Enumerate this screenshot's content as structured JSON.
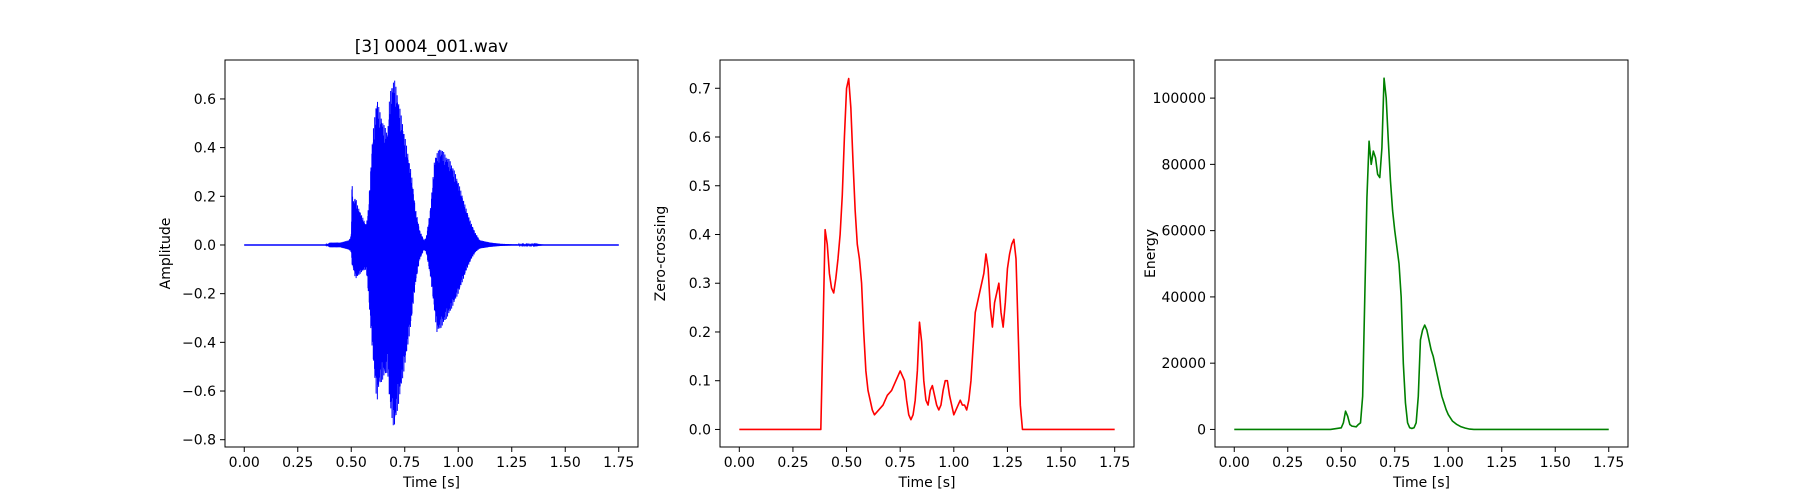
{
  "chart_data": [
    {
      "type": "line",
      "title": "[3] 0004_001.wav",
      "xlabel": "Time [s]",
      "ylabel": "Amplitude",
      "xlim": [
        -0.09,
        1.84
      ],
      "ylim": [
        -0.83,
        0.76
      ],
      "xticks": [
        0.0,
        0.25,
        0.5,
        0.75,
        1.0,
        1.25,
        1.5,
        1.75
      ],
      "xtick_labels": [
        "0.00",
        "0.25",
        "0.50",
        "0.75",
        "1.00",
        "1.25",
        "1.50",
        "1.75"
      ],
      "yticks": [
        -0.8,
        -0.6,
        -0.4,
        -0.2,
        0.0,
        0.2,
        0.4,
        0.6
      ],
      "ytick_labels": [
        "−0.8",
        "−0.6",
        "−0.4",
        "−0.2",
        "0.0",
        "0.2",
        "0.4",
        "0.6"
      ],
      "color": "#0000ff",
      "grid": false,
      "series": [
        {
          "style": "waveform",
          "envelope_x": [
            0.0,
            0.38,
            0.4,
            0.45,
            0.49,
            0.5,
            0.503,
            0.51,
            0.52,
            0.53,
            0.55,
            0.57,
            0.58,
            0.6,
            0.62,
            0.63,
            0.65,
            0.67,
            0.68,
            0.7,
            0.72,
            0.74,
            0.75,
            0.78,
            0.8,
            0.82,
            0.84,
            0.85,
            0.87,
            0.89,
            0.9,
            0.92,
            0.94,
            0.96,
            0.98,
            1.0,
            1.02,
            1.04,
            1.06,
            1.08,
            1.1,
            1.15,
            1.2,
            1.25,
            1.3,
            1.35,
            1.4,
            1.75
          ],
          "envelope_upper": [
            0.0,
            0.0,
            0.01,
            0.01,
            0.02,
            0.04,
            0.26,
            0.18,
            0.2,
            0.16,
            0.12,
            0.08,
            0.15,
            0.45,
            0.61,
            0.56,
            0.5,
            0.46,
            0.62,
            0.69,
            0.6,
            0.5,
            0.45,
            0.3,
            0.15,
            0.06,
            0.02,
            0.03,
            0.15,
            0.36,
            0.38,
            0.4,
            0.37,
            0.35,
            0.31,
            0.26,
            0.2,
            0.14,
            0.09,
            0.05,
            0.02,
            0.01,
            0.005,
            0.003,
            0.002,
            0.002,
            0.0,
            0.0
          ],
          "envelope_lower": [
            0.0,
            0.0,
            -0.01,
            -0.01,
            -0.02,
            -0.03,
            -0.08,
            -0.1,
            -0.14,
            -0.13,
            -0.11,
            -0.1,
            -0.2,
            -0.45,
            -0.65,
            -0.58,
            -0.55,
            -0.52,
            -0.66,
            -0.76,
            -0.66,
            -0.55,
            -0.5,
            -0.32,
            -0.16,
            -0.06,
            -0.02,
            -0.03,
            -0.13,
            -0.28,
            -0.36,
            -0.34,
            -0.31,
            -0.28,
            -0.24,
            -0.2,
            -0.15,
            -0.1,
            -0.06,
            -0.03,
            -0.015,
            -0.008,
            -0.004,
            -0.002,
            -0.001,
            -0.001,
            0.0,
            0.0
          ]
        }
      ]
    },
    {
      "type": "line",
      "title": "",
      "xlabel": "Time [s]",
      "ylabel": "Zero-crossing",
      "xlim": [
        -0.09,
        1.84
      ],
      "ylim": [
        -0.036,
        0.758
      ],
      "xticks": [
        0.0,
        0.25,
        0.5,
        0.75,
        1.0,
        1.25,
        1.5,
        1.75
      ],
      "xtick_labels": [
        "0.00",
        "0.25",
        "0.50",
        "0.75",
        "1.00",
        "1.25",
        "1.50",
        "1.75"
      ],
      "yticks": [
        0.0,
        0.1,
        0.2,
        0.3,
        0.4,
        0.5,
        0.6,
        0.7
      ],
      "ytick_labels": [
        "0.0",
        "0.1",
        "0.2",
        "0.3",
        "0.4",
        "0.5",
        "0.6",
        "0.7"
      ],
      "color": "#ff0000",
      "grid": false,
      "series": [
        {
          "x": [
            0.0,
            0.38,
            0.39,
            0.4,
            0.41,
            0.42,
            0.43,
            0.44,
            0.45,
            0.46,
            0.47,
            0.48,
            0.49,
            0.5,
            0.51,
            0.52,
            0.53,
            0.54,
            0.55,
            0.56,
            0.57,
            0.58,
            0.59,
            0.6,
            0.61,
            0.62,
            0.63,
            0.65,
            0.67,
            0.69,
            0.71,
            0.73,
            0.75,
            0.77,
            0.78,
            0.79,
            0.8,
            0.81,
            0.82,
            0.83,
            0.84,
            0.85,
            0.86,
            0.87,
            0.88,
            0.89,
            0.9,
            0.91,
            0.92,
            0.93,
            0.94,
            0.95,
            0.96,
            0.97,
            0.98,
            0.99,
            1.0,
            1.01,
            1.02,
            1.03,
            1.04,
            1.05,
            1.06,
            1.07,
            1.08,
            1.09,
            1.1,
            1.11,
            1.12,
            1.13,
            1.14,
            1.15,
            1.16,
            1.17,
            1.18,
            1.19,
            1.2,
            1.21,
            1.22,
            1.23,
            1.24,
            1.25,
            1.26,
            1.27,
            1.28,
            1.29,
            1.3,
            1.31,
            1.32,
            1.33,
            1.34,
            1.35,
            1.36,
            1.37,
            1.75
          ],
          "y": [
            0.0,
            0.0,
            0.2,
            0.41,
            0.38,
            0.32,
            0.29,
            0.28,
            0.31,
            0.35,
            0.4,
            0.48,
            0.6,
            0.7,
            0.72,
            0.66,
            0.55,
            0.45,
            0.38,
            0.35,
            0.3,
            0.2,
            0.12,
            0.08,
            0.06,
            0.04,
            0.03,
            0.04,
            0.05,
            0.07,
            0.08,
            0.1,
            0.12,
            0.1,
            0.06,
            0.03,
            0.02,
            0.03,
            0.06,
            0.12,
            0.22,
            0.18,
            0.1,
            0.06,
            0.05,
            0.08,
            0.09,
            0.07,
            0.05,
            0.04,
            0.05,
            0.08,
            0.1,
            0.1,
            0.07,
            0.05,
            0.03,
            0.04,
            0.05,
            0.06,
            0.05,
            0.05,
            0.04,
            0.06,
            0.1,
            0.17,
            0.24,
            0.26,
            0.28,
            0.3,
            0.32,
            0.36,
            0.33,
            0.25,
            0.21,
            0.26,
            0.28,
            0.3,
            0.24,
            0.21,
            0.26,
            0.33,
            0.36,
            0.38,
            0.39,
            0.35,
            0.2,
            0.05,
            0.0,
            0.0,
            0.0,
            0.0,
            0.0,
            0.0,
            0.0
          ]
        }
      ]
    },
    {
      "type": "line",
      "title": "",
      "xlabel": "Time [s]",
      "ylabel": "Energy",
      "xlim": [
        -0.09,
        1.84
      ],
      "ylim": [
        -5300,
        111500
      ],
      "xticks": [
        0.0,
        0.25,
        0.5,
        0.75,
        1.0,
        1.25,
        1.5,
        1.75
      ],
      "xtick_labels": [
        "0.00",
        "0.25",
        "0.50",
        "0.75",
        "1.00",
        "1.25",
        "1.50",
        "1.75"
      ],
      "yticks": [
        0,
        20000,
        40000,
        60000,
        80000,
        100000
      ],
      "ytick_labels": [
        "0",
        "20000",
        "40000",
        "60000",
        "80000",
        "100000"
      ],
      "color": "#008000",
      "grid": false,
      "series": [
        {
          "x": [
            0.0,
            0.45,
            0.5,
            0.51,
            0.52,
            0.53,
            0.54,
            0.55,
            0.57,
            0.58,
            0.59,
            0.6,
            0.61,
            0.62,
            0.63,
            0.64,
            0.65,
            0.66,
            0.67,
            0.68,
            0.69,
            0.7,
            0.71,
            0.72,
            0.73,
            0.74,
            0.75,
            0.76,
            0.77,
            0.78,
            0.79,
            0.8,
            0.81,
            0.82,
            0.83,
            0.84,
            0.85,
            0.86,
            0.87,
            0.88,
            0.89,
            0.9,
            0.91,
            0.92,
            0.93,
            0.94,
            0.95,
            0.96,
            0.97,
            0.98,
            0.99,
            1.0,
            1.02,
            1.04,
            1.06,
            1.08,
            1.1,
            1.12,
            1.15,
            1.2,
            1.25,
            1.75
          ],
          "y": [
            0,
            0,
            500,
            2000,
            5500,
            4000,
            1500,
            1000,
            800,
            1500,
            2000,
            10000,
            40000,
            70000,
            87000,
            80000,
            84000,
            82000,
            77000,
            76000,
            85000,
            106000,
            100000,
            87000,
            75000,
            66000,
            60000,
            55000,
            50000,
            40000,
            20000,
            8000,
            2000,
            500,
            300,
            500,
            2000,
            10000,
            27000,
            30000,
            31500,
            30000,
            27000,
            24000,
            22000,
            19000,
            16000,
            13000,
            10000,
            8000,
            6000,
            4500,
            2500,
            1500,
            800,
            400,
            100,
            0,
            0,
            0,
            0,
            0
          ]
        }
      ]
    }
  ]
}
